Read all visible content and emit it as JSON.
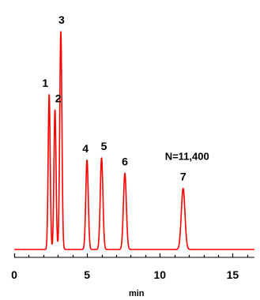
{
  "chart_data": {
    "type": "line",
    "xlabel": "min",
    "ylabel": "",
    "xlim": [
      0,
      16.5
    ],
    "ylim": [
      0,
      100
    ],
    "x_ticks": [
      0,
      5,
      10,
      15
    ],
    "x_tick_labels": [
      "0",
      "5",
      "10",
      "15"
    ],
    "minor_tick_step": 1,
    "line_color": "#ff0000",
    "grid": false,
    "annotation": "N=11,400",
    "peaks": [
      {
        "label": "1",
        "time": 2.4,
        "height": 71
      },
      {
        "label": "2",
        "time": 2.8,
        "height": 64
      },
      {
        "label": "3",
        "time": 3.2,
        "height": 100
      },
      {
        "label": "4",
        "time": 5.0,
        "height": 41
      },
      {
        "label": "5",
        "time": 6.0,
        "height": 42
      },
      {
        "label": "6",
        "time": 7.6,
        "height": 35
      },
      {
        "label": "7",
        "time": 11.6,
        "height": 28
      }
    ]
  }
}
